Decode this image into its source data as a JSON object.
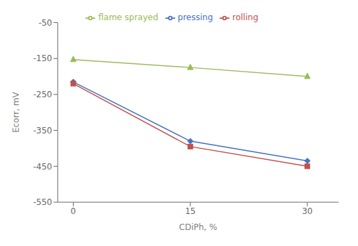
{
  "chart_data": {
    "type": "line",
    "xlabel": "CDiPh, %",
    "ylabel": "Ecorr, mV",
    "x": [
      0,
      15,
      30
    ],
    "series": [
      {
        "name": "pressing",
        "color": "#4472C4",
        "marker": "diamond",
        "values": [
          -215,
          -380,
          -435
        ]
      },
      {
        "name": "rolling",
        "color": "#C0504D",
        "marker": "square",
        "values": [
          -220,
          -395,
          -450
        ]
      },
      {
        "name": "flame sprayed",
        "color": "#9BBB59",
        "marker": "triangle",
        "values": [
          -153,
          -175,
          -200
        ]
      }
    ],
    "xlim": [
      -2,
      34
    ],
    "xticks": [
      0,
      15,
      30
    ],
    "ylim": [
      -550,
      -50
    ],
    "yticks": [
      -550,
      -450,
      -350,
      -250,
      -150,
      -50
    ],
    "grid": false,
    "legend": "top"
  }
}
